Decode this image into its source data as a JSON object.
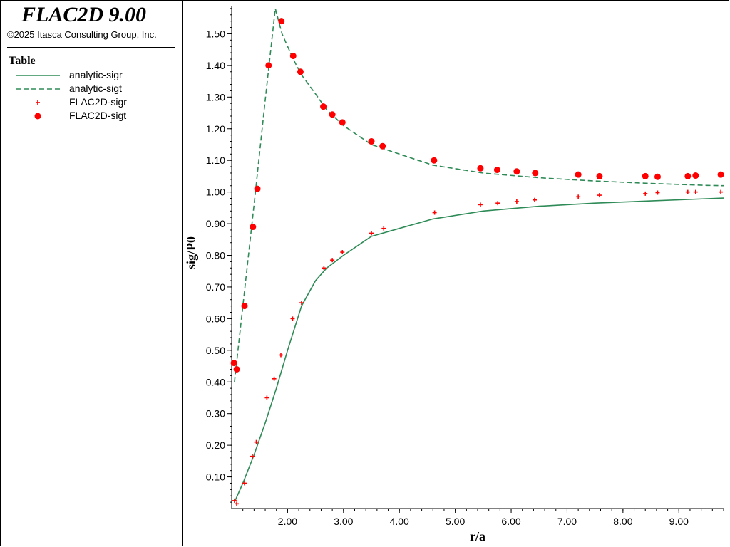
{
  "header": {
    "app_title": "FLAC2D 9.00",
    "copyright": "©2025 Itasca Consulting Group, Inc."
  },
  "legend": {
    "title": "Table",
    "items": [
      {
        "label": "analytic-sigr",
        "style": "solid-line",
        "color": "#2E8B57"
      },
      {
        "label": "analytic-sigt",
        "style": "dashed-line",
        "color": "#2E8B57"
      },
      {
        "label": "FLAC2D-sigr",
        "style": "plus-marker",
        "color": "#FF0000"
      },
      {
        "label": "FLAC2D-sigt",
        "style": "circle-marker",
        "color": "#FF0000"
      }
    ]
  },
  "chart_data": {
    "type": "scatter",
    "xlabel": "r/a",
    "ylabel": "sig/P0",
    "xlim": [
      1.0,
      9.8
    ],
    "ylim": [
      0.0,
      1.6
    ],
    "xticks": [
      "2.00",
      "3.00",
      "4.00",
      "5.00",
      "6.00",
      "7.00",
      "8.00",
      "9.00"
    ],
    "yticks": [
      "0.10",
      "0.20",
      "0.30",
      "0.40",
      "0.50",
      "0.60",
      "0.70",
      "0.80",
      "0.90",
      "1.00",
      "1.10",
      "1.20",
      "1.30",
      "1.40",
      "1.50"
    ],
    "grid": false,
    "series": [
      {
        "name": "analytic-sigr",
        "kind": "line",
        "dash": false,
        "color": "#2E8B57",
        "x": [
          1.05,
          1.2,
          1.4,
          1.6,
          1.8,
          2.0,
          2.25,
          2.5,
          2.7,
          3.0,
          3.5,
          4.0,
          4.6,
          5.5,
          6.5,
          7.5,
          8.5,
          9.5,
          9.8
        ],
        "y": [
          0.02,
          0.08,
          0.17,
          0.27,
          0.38,
          0.5,
          0.64,
          0.72,
          0.76,
          0.8,
          0.86,
          0.885,
          0.915,
          0.94,
          0.955,
          0.965,
          0.972,
          0.979,
          0.981
        ]
      },
      {
        "name": "analytic-sigt",
        "kind": "line",
        "dash": true,
        "color": "#2E8B57",
        "x": [
          1.05,
          1.2,
          1.4,
          1.6,
          1.78,
          1.9,
          2.1,
          2.25,
          2.5,
          2.7,
          3.0,
          3.5,
          4.0,
          4.6,
          5.5,
          6.5,
          7.5,
          8.5,
          9.5,
          9.8
        ],
        "y": [
          0.4,
          0.64,
          0.96,
          1.29,
          1.58,
          1.5,
          1.42,
          1.37,
          1.31,
          1.26,
          1.21,
          1.15,
          1.12,
          1.085,
          1.06,
          1.045,
          1.035,
          1.027,
          1.021,
          1.02
        ]
      },
      {
        "name": "FLAC2D-sigr",
        "kind": "plus",
        "color": "#FF0000",
        "x": [
          1.05,
          1.09,
          1.23,
          1.37,
          1.44,
          1.63,
          1.76,
          1.88,
          2.09,
          2.25,
          2.65,
          2.8,
          2.98,
          3.5,
          3.72,
          4.63,
          5.45,
          5.76,
          6.1,
          6.42,
          7.2,
          7.58,
          8.4,
          8.62,
          9.16,
          9.3,
          9.75
        ],
        "y": [
          0.025,
          0.015,
          0.08,
          0.165,
          0.21,
          0.35,
          0.41,
          0.485,
          0.6,
          0.65,
          0.76,
          0.785,
          0.81,
          0.87,
          0.885,
          0.935,
          0.96,
          0.965,
          0.97,
          0.975,
          0.985,
          0.99,
          0.995,
          0.998,
          1.0,
          1.0,
          1.0
        ]
      },
      {
        "name": "FLAC2D-sigt",
        "kind": "circle",
        "color": "#FF0000",
        "x": [
          1.04,
          1.09,
          1.23,
          1.38,
          1.46,
          1.66,
          1.89,
          2.1,
          2.23,
          2.64,
          2.8,
          2.98,
          3.5,
          3.7,
          4.62,
          5.45,
          5.75,
          6.1,
          6.43,
          7.2,
          7.58,
          8.4,
          8.62,
          9.16,
          9.3,
          9.75
        ],
        "y": [
          0.46,
          0.44,
          0.64,
          0.89,
          1.01,
          1.4,
          1.54,
          1.43,
          1.38,
          1.27,
          1.245,
          1.22,
          1.16,
          1.145,
          1.1,
          1.075,
          1.07,
          1.065,
          1.06,
          1.055,
          1.05,
          1.05,
          1.048,
          1.05,
          1.052,
          1.055
        ]
      }
    ]
  }
}
